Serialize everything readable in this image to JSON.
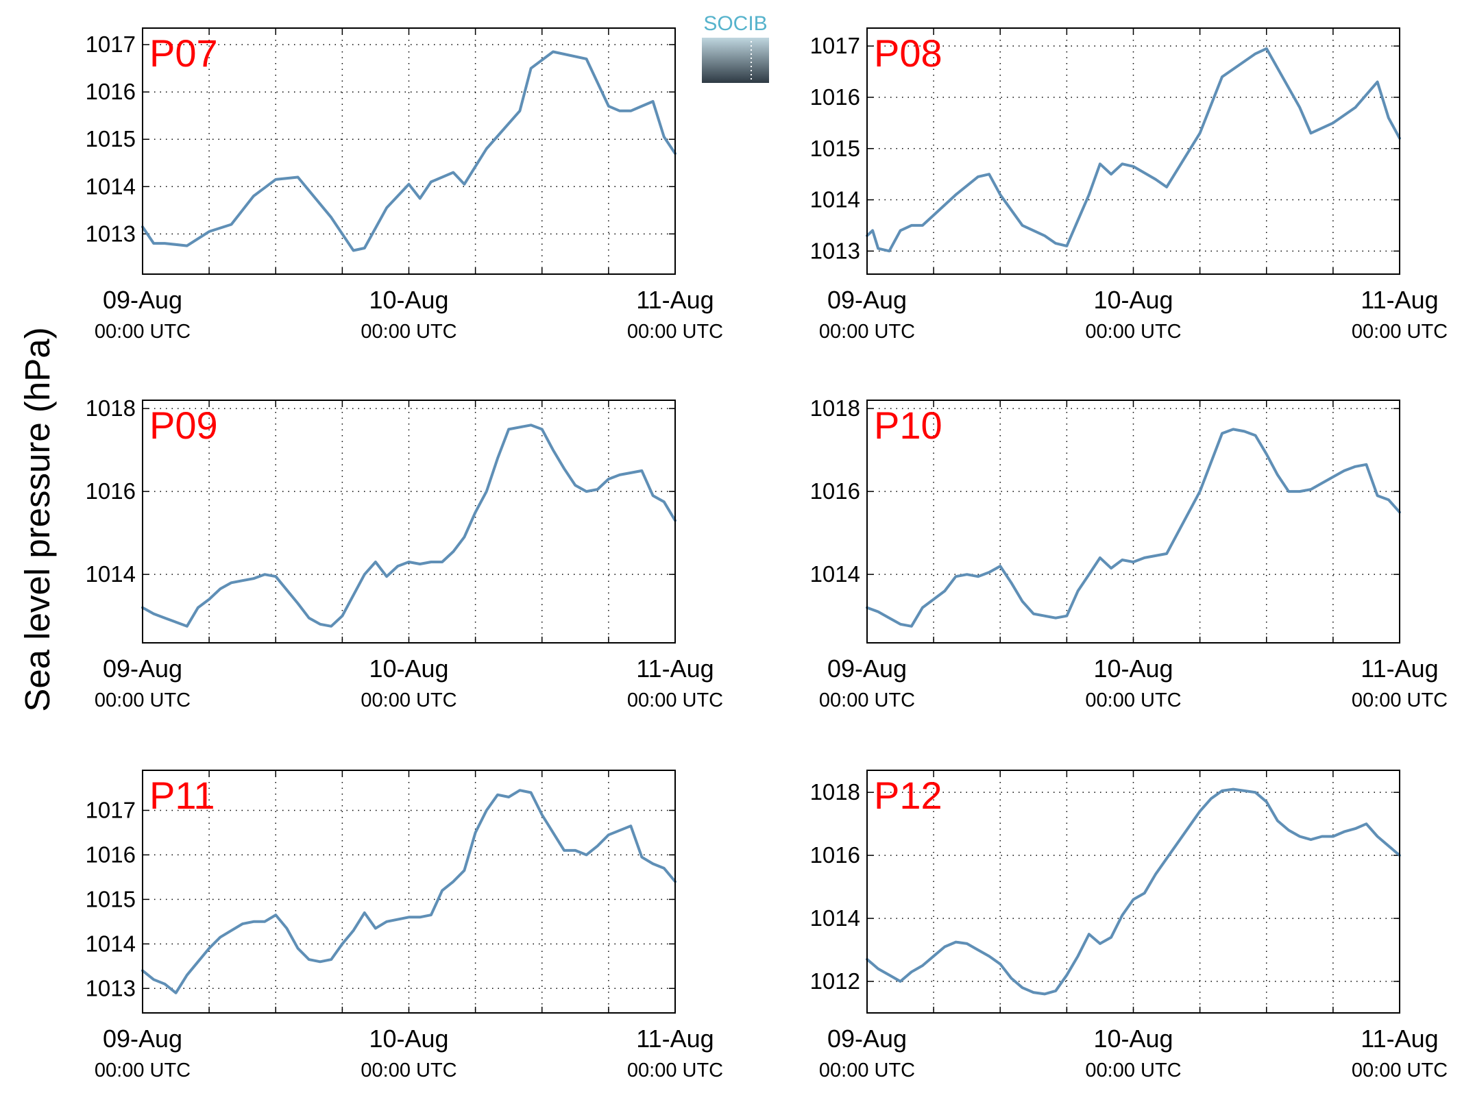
{
  "figure": {
    "ylabel": "Sea level pressure (hPa)",
    "logo_text": "SOCIB",
    "colors": {
      "line": "#5f8fb6",
      "panel_label": "#ff0000",
      "axis": "#000000",
      "logo_top": "#56b3cc",
      "logo_bottom": "#2e3a44"
    }
  },
  "chart_data": [
    {
      "type": "line",
      "label": "P07",
      "x_ticks": [
        {
          "date": "09-Aug",
          "time": "00:00 UTC"
        },
        {
          "date": "10-Aug",
          "time": "00:00 UTC"
        },
        {
          "date": "11-Aug",
          "time": "00:00 UTC"
        }
      ],
      "xlim": [
        "2014-08-09T00:00",
        "2014-08-11T00:00"
      ],
      "ylim": [
        1012.15,
        1017.35
      ],
      "yticks": [
        1013,
        1014,
        1015,
        1016,
        1017
      ],
      "grid": true,
      "x_hours": [
        0,
        1,
        2,
        4,
        6,
        8,
        9,
        10,
        12,
        14,
        17,
        19,
        20,
        22,
        24,
        25,
        26,
        28,
        29,
        31,
        34,
        35,
        37,
        40,
        42,
        43,
        44,
        45,
        46,
        47,
        48
      ],
      "values": [
        1013.15,
        1012.8,
        1012.8,
        1012.75,
        1013.05,
        1013.2,
        1013.5,
        1013.8,
        1014.15,
        1014.2,
        1013.35,
        1012.65,
        1012.7,
        1013.55,
        1014.05,
        1013.75,
        1014.1,
        1014.3,
        1014.05,
        1014.8,
        1015.6,
        1016.5,
        1016.85,
        1016.7,
        1015.7,
        1015.6,
        1015.6,
        1015.7,
        1015.8,
        1015.05,
        1014.7
      ]
    },
    {
      "type": "line",
      "label": "P08",
      "x_ticks": [
        {
          "date": "09-Aug",
          "time": "00:00 UTC"
        },
        {
          "date": "10-Aug",
          "time": "00:00 UTC"
        },
        {
          "date": "11-Aug",
          "time": "00:00 UTC"
        }
      ],
      "xlim": [
        "2014-08-09T00:00",
        "2014-08-11T00:00"
      ],
      "ylim": [
        1012.55,
        1017.35
      ],
      "yticks": [
        1013,
        1014,
        1015,
        1016,
        1017
      ],
      "grid": true,
      "x_hours": [
        0,
        0.5,
        1,
        2,
        3,
        4,
        5,
        6,
        8,
        10,
        11,
        12,
        14,
        16,
        17,
        18,
        20,
        21,
        22,
        23,
        24,
        26,
        27,
        28,
        30,
        32,
        35,
        36,
        39,
        40,
        42,
        44,
        46,
        47,
        48
      ],
      "values": [
        1013.3,
        1013.4,
        1013.05,
        1013.0,
        1013.4,
        1013.5,
        1013.5,
        1013.7,
        1014.1,
        1014.45,
        1014.5,
        1014.1,
        1013.5,
        1013.3,
        1013.15,
        1013.1,
        1014.1,
        1014.7,
        1014.5,
        1014.7,
        1014.65,
        1014.4,
        1014.25,
        1014.6,
        1015.3,
        1016.4,
        1016.85,
        1016.95,
        1015.8,
        1015.3,
        1015.5,
        1015.8,
        1016.3,
        1015.6,
        1015.2
      ]
    },
    {
      "type": "line",
      "label": "P09",
      "x_ticks": [
        {
          "date": "09-Aug",
          "time": "00:00 UTC"
        },
        {
          "date": "10-Aug",
          "time": "00:00 UTC"
        },
        {
          "date": "11-Aug",
          "time": "00:00 UTC"
        }
      ],
      "xlim": [
        "2014-08-09T00:00",
        "2014-08-11T00:00"
      ],
      "ylim": [
        1012.35,
        1018.2
      ],
      "yticks": [
        1014,
        1016,
        1018
      ],
      "grid": true,
      "x_hours": [
        0,
        1,
        2,
        3,
        4,
        5,
        6,
        7,
        8,
        9,
        10,
        11,
        12,
        14,
        15,
        16,
        17,
        18,
        19,
        20,
        21,
        22,
        23,
        24,
        25,
        26,
        27,
        28,
        29,
        30,
        31,
        32,
        33,
        34,
        35,
        36,
        37,
        38,
        39,
        40,
        41,
        42,
        43,
        44,
        45,
        46,
        47,
        48
      ],
      "values": [
        1013.2,
        1013.05,
        1012.95,
        1012.85,
        1012.75,
        1013.2,
        1013.4,
        1013.65,
        1013.8,
        1013.85,
        1013.9,
        1014.0,
        1013.95,
        1013.3,
        1012.95,
        1012.8,
        1012.75,
        1013.0,
        1013.5,
        1014.0,
        1014.3,
        1013.95,
        1014.2,
        1014.3,
        1014.25,
        1014.3,
        1014.3,
        1014.55,
        1014.9,
        1015.5,
        1016.0,
        1016.8,
        1017.5,
        1017.55,
        1017.6,
        1017.5,
        1017.0,
        1016.55,
        1016.15,
        1016.0,
        1016.05,
        1016.3,
        1016.4,
        1016.45,
        1016.5,
        1015.9,
        1015.75,
        1015.3
      ]
    },
    {
      "type": "line",
      "label": "P10",
      "x_ticks": [
        {
          "date": "09-Aug",
          "time": "00:00 UTC"
        },
        {
          "date": "10-Aug",
          "time": "00:00 UTC"
        },
        {
          "date": "11-Aug",
          "time": "00:00 UTC"
        }
      ],
      "xlim": [
        "2014-08-09T00:00",
        "2014-08-11T00:00"
      ],
      "ylim": [
        1012.35,
        1018.2
      ],
      "yticks": [
        1014,
        1016,
        1018
      ],
      "grid": true,
      "x_hours": [
        0,
        1,
        2,
        3,
        4,
        5,
        6,
        7,
        8,
        9,
        10,
        11,
        12,
        13,
        14,
        15,
        16,
        17,
        18,
        19,
        20,
        21,
        22,
        23,
        24,
        25,
        26,
        27,
        28,
        29,
        30,
        31,
        32,
        33,
        34,
        35,
        36,
        37,
        38,
        39,
        40,
        41,
        42,
        43,
        44,
        45,
        46,
        47,
        48
      ],
      "values": [
        1013.2,
        1013.1,
        1012.95,
        1012.8,
        1012.75,
        1013.2,
        1013.4,
        1013.6,
        1013.95,
        1014.0,
        1013.95,
        1014.05,
        1014.2,
        1013.8,
        1013.35,
        1013.05,
        1013.0,
        1012.95,
        1013.0,
        1013.6,
        1014.0,
        1014.4,
        1014.15,
        1014.35,
        1014.3,
        1014.4,
        1014.45,
        1014.5,
        1015.0,
        1015.5,
        1016.0,
        1016.7,
        1017.4,
        1017.5,
        1017.45,
        1017.35,
        1016.9,
        1016.4,
        1016.0,
        1016.0,
        1016.05,
        1016.2,
        1016.35,
        1016.5,
        1016.6,
        1016.65,
        1015.9,
        1015.8,
        1015.5
      ]
    },
    {
      "type": "line",
      "label": "P11",
      "x_ticks": [
        {
          "date": "09-Aug",
          "time": "00:00 UTC"
        },
        {
          "date": "10-Aug",
          "time": "00:00 UTC"
        },
        {
          "date": "11-Aug",
          "time": "00:00 UTC"
        }
      ],
      "xlim": [
        "2014-08-09T00:00",
        "2014-08-11T00:00"
      ],
      "ylim": [
        1012.45,
        1017.9
      ],
      "yticks": [
        1013,
        1014,
        1015,
        1016,
        1017
      ],
      "grid": true,
      "x_hours": [
        0,
        1,
        2,
        3,
        4,
        5,
        6,
        7,
        8,
        9,
        10,
        11,
        12,
        13,
        14,
        15,
        16,
        17,
        18,
        19,
        20,
        21,
        22,
        23,
        24,
        25,
        26,
        27,
        28,
        29,
        30,
        31,
        32,
        33,
        34,
        35,
        36,
        37,
        38,
        39,
        40,
        41,
        42,
        43,
        44,
        45,
        46,
        47,
        48
      ],
      "values": [
        1013.4,
        1013.2,
        1013.1,
        1012.9,
        1013.3,
        1013.6,
        1013.9,
        1014.15,
        1014.3,
        1014.45,
        1014.5,
        1014.5,
        1014.65,
        1014.35,
        1013.9,
        1013.65,
        1013.6,
        1013.65,
        1014.0,
        1014.3,
        1014.7,
        1014.35,
        1014.5,
        1014.55,
        1014.6,
        1014.6,
        1014.65,
        1015.2,
        1015.4,
        1015.65,
        1016.5,
        1017.0,
        1017.35,
        1017.3,
        1017.45,
        1017.4,
        1016.9,
        1016.5,
        1016.1,
        1016.1,
        1016.0,
        1016.2,
        1016.45,
        1016.55,
        1016.65,
        1015.95,
        1015.8,
        1015.7,
        1015.4
      ]
    },
    {
      "type": "line",
      "label": "P12",
      "x_ticks": [
        {
          "date": "09-Aug",
          "time": "00:00 UTC"
        },
        {
          "date": "10-Aug",
          "time": "00:00 UTC"
        },
        {
          "date": "11-Aug",
          "time": "00:00 UTC"
        }
      ],
      "xlim": [
        "2014-08-09T00:00",
        "2014-08-11T00:00"
      ],
      "ylim": [
        1011.0,
        1018.7
      ],
      "yticks": [
        1012,
        1014,
        1016,
        1018
      ],
      "grid": true,
      "x_hours": [
        0,
        1,
        2,
        3,
        4,
        5,
        6,
        7,
        8,
        9,
        10,
        11,
        12,
        13,
        14,
        15,
        16,
        17,
        18,
        19,
        20,
        21,
        22,
        23,
        24,
        25,
        26,
        27,
        28,
        29,
        30,
        31,
        32,
        33,
        34,
        35,
        36,
        37,
        38,
        39,
        40,
        41,
        42,
        43,
        44,
        45,
        46,
        47,
        48
      ],
      "values": [
        1012.7,
        1012.4,
        1012.2,
        1012.0,
        1012.3,
        1012.5,
        1012.8,
        1013.1,
        1013.25,
        1013.2,
        1013.0,
        1012.8,
        1012.55,
        1012.1,
        1011.8,
        1011.65,
        1011.6,
        1011.7,
        1012.2,
        1012.8,
        1013.5,
        1013.2,
        1013.4,
        1014.1,
        1014.6,
        1014.8,
        1015.4,
        1015.9,
        1016.4,
        1016.9,
        1017.4,
        1017.8,
        1018.05,
        1018.1,
        1018.05,
        1018.0,
        1017.7,
        1017.1,
        1016.8,
        1016.6,
        1016.5,
        1016.6,
        1016.6,
        1016.75,
        1016.85,
        1017.0,
        1016.6,
        1016.3,
        1016.0
      ]
    }
  ]
}
